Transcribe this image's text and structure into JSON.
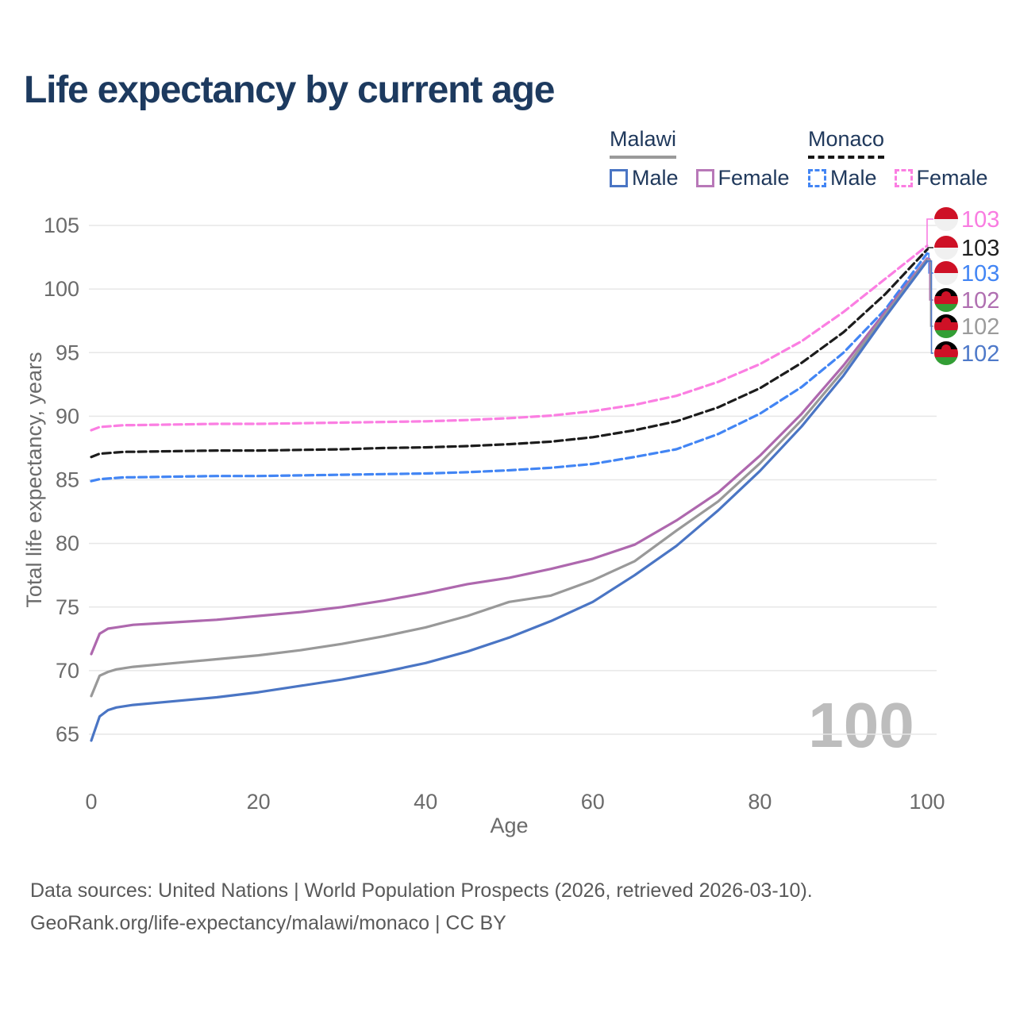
{
  "title": "Life expectancy by current age",
  "legend": {
    "groups": [
      {
        "name": "Malawi",
        "line_style": "solid",
        "underline_color": "#9a9a9a",
        "items": [
          {
            "label": "Male",
            "color": "#4a75c4"
          },
          {
            "label": "Female",
            "color": "#b878b8"
          }
        ]
      },
      {
        "name": "Monaco",
        "line_style": "dashed",
        "underline_color": "#161616",
        "items": [
          {
            "label": "Male",
            "color": "#4285f4"
          },
          {
            "label": "Female",
            "color": "#fb7ee2"
          }
        ]
      }
    ]
  },
  "watermark": "100",
  "footer": {
    "line1": "Data sources: United Nations | World Population Prospects (2026, retrieved 2026-03-10).",
    "line2": "GeoRank.org/life-expectancy/malawi/monaco | CC BY"
  },
  "chart_data": {
    "type": "line",
    "title": "Life expectancy by current age",
    "xlabel": "Age",
    "ylabel": "Total life expectancy, years",
    "xlim": [
      0,
      100
    ],
    "ylim": [
      65,
      105
    ],
    "xticks": [
      0,
      20,
      40,
      60,
      80,
      100
    ],
    "yticks": [
      65,
      70,
      75,
      80,
      85,
      90,
      95,
      100,
      105
    ],
    "grid": "horizontal",
    "grid_color": "#e7e7e7",
    "axis_text_color": "#6b6b6b",
    "legend_position": "top-right",
    "x": [
      0,
      1,
      2,
      3,
      4,
      5,
      10,
      15,
      20,
      25,
      30,
      35,
      40,
      45,
      50,
      55,
      60,
      65,
      70,
      75,
      80,
      85,
      90,
      95,
      100
    ],
    "series": [
      {
        "name": "Monaco Female",
        "country": "Monaco",
        "sex": "Female",
        "color": "#fb7ee2",
        "dashed": true,
        "values": [
          88.9,
          89.15,
          89.2,
          89.25,
          89.3,
          89.3,
          89.35,
          89.4,
          89.4,
          89.45,
          89.5,
          89.55,
          89.6,
          89.7,
          89.85,
          90.05,
          90.4,
          90.9,
          91.6,
          92.7,
          94.1,
          95.9,
          98.2,
          100.8,
          103.4
        ]
      },
      {
        "name": "Monaco Both sexes",
        "country": "Monaco",
        "sex": "Both",
        "color": "#1c1c1c",
        "dashed": true,
        "values": [
          86.8,
          87.05,
          87.1,
          87.15,
          87.2,
          87.2,
          87.25,
          87.3,
          87.3,
          87.35,
          87.4,
          87.5,
          87.55,
          87.65,
          87.8,
          88.0,
          88.35,
          88.9,
          89.6,
          90.7,
          92.2,
          94.2,
          96.6,
          99.6,
          103.1
        ]
      },
      {
        "name": "Monaco Male",
        "country": "Monaco",
        "sex": "Male",
        "color": "#4285f4",
        "dashed": true,
        "values": [
          84.9,
          85.05,
          85.1,
          85.15,
          85.2,
          85.2,
          85.25,
          85.3,
          85.3,
          85.35,
          85.4,
          85.45,
          85.5,
          85.6,
          85.75,
          85.95,
          86.25,
          86.8,
          87.4,
          88.6,
          90.2,
          92.3,
          95.0,
          98.4,
          102.8
        ]
      },
      {
        "name": "Malawi Female",
        "country": "Malawi",
        "sex": "Female",
        "color": "#ae68ae",
        "dashed": false,
        "values": [
          71.3,
          72.9,
          73.3,
          73.4,
          73.5,
          73.6,
          73.8,
          74.0,
          74.3,
          74.6,
          75.0,
          75.5,
          76.1,
          76.8,
          77.3,
          78.0,
          78.8,
          79.9,
          81.8,
          84.0,
          86.9,
          90.2,
          94.0,
          98.2,
          102.4
        ]
      },
      {
        "name": "Malawi Both sexes",
        "country": "Malawi",
        "sex": "Both",
        "color": "#999999",
        "dashed": false,
        "values": [
          68.0,
          69.6,
          69.9,
          70.1,
          70.2,
          70.3,
          70.6,
          70.9,
          71.2,
          71.6,
          72.1,
          72.7,
          73.4,
          74.3,
          75.4,
          75.9,
          77.1,
          78.6,
          81.0,
          83.3,
          86.3,
          89.7,
          93.6,
          98.0,
          102.3
        ]
      },
      {
        "name": "Malawi Male",
        "country": "Malawi",
        "sex": "Male",
        "color": "#4a75c4",
        "dashed": false,
        "values": [
          64.5,
          66.4,
          66.9,
          67.1,
          67.2,
          67.3,
          67.6,
          67.9,
          68.3,
          68.8,
          69.3,
          69.9,
          70.6,
          71.5,
          72.6,
          73.9,
          75.4,
          77.5,
          79.8,
          82.6,
          85.7,
          89.2,
          93.2,
          97.8,
          102.2
        ]
      }
    ],
    "end_labels": [
      {
        "series": "Monaco Female",
        "value": "103",
        "color": "#f97ce1",
        "flag": "monaco"
      },
      {
        "series": "Monaco Both sexes",
        "value": "103",
        "color": "#1f1f1f",
        "flag": "monaco"
      },
      {
        "series": "Monaco Male",
        "value": "103",
        "color": "#4285f4",
        "flag": "monaco"
      },
      {
        "series": "Malawi Female",
        "value": "102",
        "color": "#b06fb1",
        "flag": "malawi"
      },
      {
        "series": "Malawi Both sexes",
        "value": "102",
        "color": "#9b9b9b",
        "flag": "malawi"
      },
      {
        "series": "Malawi Male",
        "value": "102",
        "color": "#4e79c9",
        "flag": "malawi"
      }
    ]
  }
}
